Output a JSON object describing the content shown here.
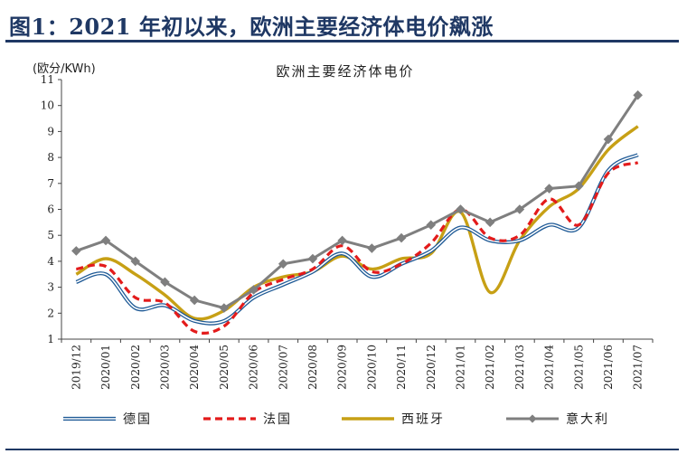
{
  "header": {
    "title": "图1：2021 年初以来，欧洲主要经济体电价飙涨"
  },
  "chart_data": {
    "type": "line",
    "title": "欧洲主要经济体电价",
    "ylabel": "(欧分/KWh)",
    "xlabel": "",
    "ylim": [
      1,
      11
    ],
    "yticks": [
      1,
      2,
      3,
      4,
      5,
      6,
      7,
      8,
      9,
      10,
      11
    ],
    "categories": [
      "2019/12",
      "2020/01",
      "2020/02",
      "2020/03",
      "2020/04",
      "2020/05",
      "2020/06",
      "2020/07",
      "2020/08",
      "2020/09",
      "2020/10",
      "2020/11",
      "2020/12",
      "2021/01",
      "2021/02",
      "2021/03",
      "2021/04",
      "2021/05",
      "2021/06",
      "2021/07"
    ],
    "grid": false,
    "legend_position": "bottom",
    "series": [
      {
        "name": "德国",
        "color": "#1f5a96",
        "style": "double",
        "values": [
          3.2,
          3.5,
          2.2,
          2.3,
          1.7,
          1.7,
          2.6,
          3.1,
          3.6,
          4.3,
          3.4,
          3.9,
          4.4,
          5.3,
          4.8,
          4.8,
          5.4,
          5.3,
          7.5,
          8.1
        ]
      },
      {
        "name": "法国",
        "color": "#e31b1b",
        "style": "dashed",
        "values": [
          3.7,
          3.8,
          2.6,
          2.4,
          1.3,
          1.5,
          2.8,
          3.3,
          3.7,
          4.6,
          3.6,
          3.9,
          4.7,
          6.0,
          4.9,
          5.0,
          6.4,
          5.4,
          7.4,
          7.8
        ]
      },
      {
        "name": "西班牙",
        "color": "#c7a015",
        "style": "solid",
        "values": [
          3.5,
          4.1,
          3.5,
          2.7,
          1.8,
          2.1,
          3.0,
          3.4,
          3.6,
          4.2,
          3.7,
          4.1,
          4.3,
          5.9,
          2.8,
          4.8,
          6.1,
          6.8,
          8.3,
          9.2
        ]
      },
      {
        "name": "意大利",
        "color": "#7f7f7f",
        "style": "marker",
        "values": [
          4.4,
          4.8,
          4.0,
          3.2,
          2.5,
          2.2,
          2.9,
          3.9,
          4.1,
          4.8,
          4.5,
          4.9,
          5.4,
          6.0,
          5.5,
          6.0,
          6.8,
          6.9,
          8.7,
          10.4
        ]
      }
    ]
  }
}
